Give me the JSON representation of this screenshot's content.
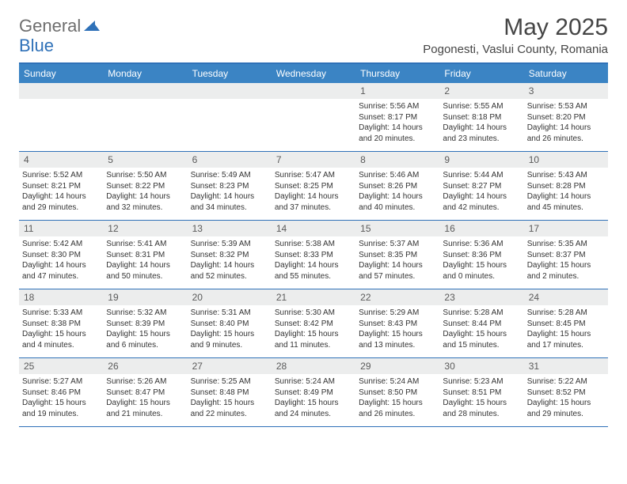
{
  "brand": {
    "part1": "General",
    "part2": "Blue"
  },
  "title": "May 2025",
  "location": "Pogonesti, Vaslui County, Romania",
  "colors": {
    "accent": "#3b84c4",
    "border": "#2f71b8",
    "daybar": "#eceded",
    "text": "#333333",
    "muted": "#6e6e6e"
  },
  "dow": [
    "Sunday",
    "Monday",
    "Tuesday",
    "Wednesday",
    "Thursday",
    "Friday",
    "Saturday"
  ],
  "weeks": [
    [
      null,
      null,
      null,
      null,
      {
        "n": "1",
        "sr": "5:56 AM",
        "ss": "8:17 PM",
        "dl": "14 hours and 20 minutes."
      },
      {
        "n": "2",
        "sr": "5:55 AM",
        "ss": "8:18 PM",
        "dl": "14 hours and 23 minutes."
      },
      {
        "n": "3",
        "sr": "5:53 AM",
        "ss": "8:20 PM",
        "dl": "14 hours and 26 minutes."
      }
    ],
    [
      {
        "n": "4",
        "sr": "5:52 AM",
        "ss": "8:21 PM",
        "dl": "14 hours and 29 minutes."
      },
      {
        "n": "5",
        "sr": "5:50 AM",
        "ss": "8:22 PM",
        "dl": "14 hours and 32 minutes."
      },
      {
        "n": "6",
        "sr": "5:49 AM",
        "ss": "8:23 PM",
        "dl": "14 hours and 34 minutes."
      },
      {
        "n": "7",
        "sr": "5:47 AM",
        "ss": "8:25 PM",
        "dl": "14 hours and 37 minutes."
      },
      {
        "n": "8",
        "sr": "5:46 AM",
        "ss": "8:26 PM",
        "dl": "14 hours and 40 minutes."
      },
      {
        "n": "9",
        "sr": "5:44 AM",
        "ss": "8:27 PM",
        "dl": "14 hours and 42 minutes."
      },
      {
        "n": "10",
        "sr": "5:43 AM",
        "ss": "8:28 PM",
        "dl": "14 hours and 45 minutes."
      }
    ],
    [
      {
        "n": "11",
        "sr": "5:42 AM",
        "ss": "8:30 PM",
        "dl": "14 hours and 47 minutes."
      },
      {
        "n": "12",
        "sr": "5:41 AM",
        "ss": "8:31 PM",
        "dl": "14 hours and 50 minutes."
      },
      {
        "n": "13",
        "sr": "5:39 AM",
        "ss": "8:32 PM",
        "dl": "14 hours and 52 minutes."
      },
      {
        "n": "14",
        "sr": "5:38 AM",
        "ss": "8:33 PM",
        "dl": "14 hours and 55 minutes."
      },
      {
        "n": "15",
        "sr": "5:37 AM",
        "ss": "8:35 PM",
        "dl": "14 hours and 57 minutes."
      },
      {
        "n": "16",
        "sr": "5:36 AM",
        "ss": "8:36 PM",
        "dl": "15 hours and 0 minutes."
      },
      {
        "n": "17",
        "sr": "5:35 AM",
        "ss": "8:37 PM",
        "dl": "15 hours and 2 minutes."
      }
    ],
    [
      {
        "n": "18",
        "sr": "5:33 AM",
        "ss": "8:38 PM",
        "dl": "15 hours and 4 minutes."
      },
      {
        "n": "19",
        "sr": "5:32 AM",
        "ss": "8:39 PM",
        "dl": "15 hours and 6 minutes."
      },
      {
        "n": "20",
        "sr": "5:31 AM",
        "ss": "8:40 PM",
        "dl": "15 hours and 9 minutes."
      },
      {
        "n": "21",
        "sr": "5:30 AM",
        "ss": "8:42 PM",
        "dl": "15 hours and 11 minutes."
      },
      {
        "n": "22",
        "sr": "5:29 AM",
        "ss": "8:43 PM",
        "dl": "15 hours and 13 minutes."
      },
      {
        "n": "23",
        "sr": "5:28 AM",
        "ss": "8:44 PM",
        "dl": "15 hours and 15 minutes."
      },
      {
        "n": "24",
        "sr": "5:28 AM",
        "ss": "8:45 PM",
        "dl": "15 hours and 17 minutes."
      }
    ],
    [
      {
        "n": "25",
        "sr": "5:27 AM",
        "ss": "8:46 PM",
        "dl": "15 hours and 19 minutes."
      },
      {
        "n": "26",
        "sr": "5:26 AM",
        "ss": "8:47 PM",
        "dl": "15 hours and 21 minutes."
      },
      {
        "n": "27",
        "sr": "5:25 AM",
        "ss": "8:48 PM",
        "dl": "15 hours and 22 minutes."
      },
      {
        "n": "28",
        "sr": "5:24 AM",
        "ss": "8:49 PM",
        "dl": "15 hours and 24 minutes."
      },
      {
        "n": "29",
        "sr": "5:24 AM",
        "ss": "8:50 PM",
        "dl": "15 hours and 26 minutes."
      },
      {
        "n": "30",
        "sr": "5:23 AM",
        "ss": "8:51 PM",
        "dl": "15 hours and 28 minutes."
      },
      {
        "n": "31",
        "sr": "5:22 AM",
        "ss": "8:52 PM",
        "dl": "15 hours and 29 minutes."
      }
    ]
  ],
  "labels": {
    "sunrise": "Sunrise: ",
    "sunset": "Sunset: ",
    "daylight": "Daylight: "
  }
}
